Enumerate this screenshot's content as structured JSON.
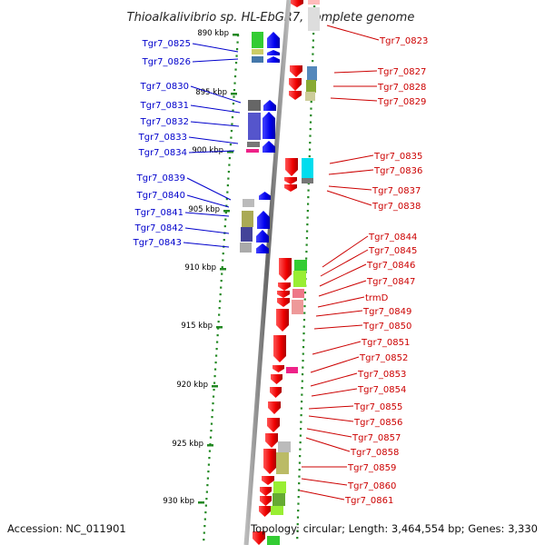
{
  "title": "Thioalkalivibrio sp. HL-EbGR7, complete genome",
  "footer": {
    "accession": "Accession: NC_011901",
    "summary": "Topology: circular; Length: 3,464,554 bp; Genes: 3,330"
  },
  "scale_labels": [
    "890 kbp",
    "895 kbp",
    "900 kbp",
    "905 kbp",
    "910 kbp",
    "915 kbp",
    "920 kbp",
    "925 kbp",
    "930 kbp"
  ],
  "left_genes": [
    "Tgr7_0825",
    "Tgr7_0826",
    "Tgr7_0830",
    "Tgr7_0831",
    "Tgr7_0832",
    "Tgr7_0833",
    "Tgr7_0834",
    "Tgr7_0839",
    "Tgr7_0840",
    "Tgr7_0841",
    "Tgr7_0842",
    "Tgr7_0843"
  ],
  "right_genes": [
    "Tgr7_0823",
    "Tgr7_0827",
    "Tgr7_0828",
    "Tgr7_0829",
    "Tgr7_0835",
    "Tgr7_0836",
    "Tgr7_0837",
    "Tgr7_0838",
    "Tgr7_0844",
    "Tgr7_0845",
    "Tgr7_0846",
    "Tgr7_0847",
    "trmD",
    "Tgr7_0849",
    "Tgr7_0850",
    "Tgr7_0851",
    "Tgr7_0852",
    "Tgr7_0853",
    "Tgr7_0854",
    "Tgr7_0855",
    "Tgr7_0856",
    "Tgr7_0857",
    "Tgr7_0858",
    "Tgr7_0859",
    "Tgr7_0860",
    "Tgr7_0861"
  ],
  "colors": {
    "forward_strand": "#0000ee",
    "reverse_strand": "#ee0000",
    "left_label": "#0000cc",
    "right_label": "#cc0000",
    "backbone": "#888888",
    "scale_dots": "#228822"
  }
}
